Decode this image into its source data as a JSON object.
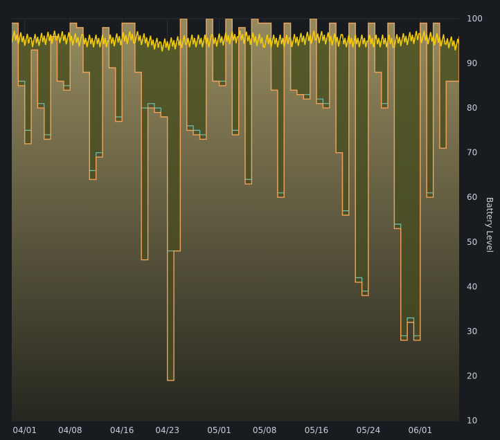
{
  "chart_data": {
    "type": "area",
    "title": "",
    "xlabel": "",
    "ylabel": "Battery Level",
    "y_axis_position": "right",
    "ylim": [
      10,
      100
    ],
    "xlim": [
      "2025-03-30",
      "2025-06-07"
    ],
    "y_ticks": [
      10,
      20,
      30,
      40,
      50,
      60,
      70,
      80,
      90,
      100
    ],
    "x_ticks": [
      {
        "label": "04/01",
        "date": "2025-04-01"
      },
      {
        "label": "04/08",
        "date": "2025-04-08"
      },
      {
        "label": "04/16",
        "date": "2025-04-16"
      },
      {
        "label": "04/23",
        "date": "2025-04-23"
      },
      {
        "label": "05/01",
        "date": "2025-05-01"
      },
      {
        "label": "05/08",
        "date": "2025-05-08"
      },
      {
        "label": "05/16",
        "date": "2025-05-16"
      },
      {
        "label": "05/24",
        "date": "2025-05-24"
      },
      {
        "label": "06/01",
        "date": "2025-06-01"
      }
    ],
    "grid": true,
    "legend": "none",
    "colors": {
      "background": "#181b1f",
      "grid": "#2c3035",
      "primary_line": "#f2a057",
      "secondary_line": "#6fc4b1",
      "band_line": "#f2cc0c",
      "area_top": "#9b8f62",
      "area_bottom": "#24251f"
    },
    "series": [
      {
        "x": [
          "2025-03-30",
          "2025-03-31",
          "2025-04-01",
          "2025-04-02",
          "2025-04-03",
          "2025-04-04",
          "2025-04-05",
          "2025-04-06",
          "2025-04-07",
          "2025-04-08",
          "2025-04-09",
          "2025-04-10",
          "2025-04-11",
          "2025-04-12",
          "2025-04-13",
          "2025-04-14",
          "2025-04-15",
          "2025-04-16",
          "2025-04-17",
          "2025-04-18",
          "2025-04-19",
          "2025-04-20",
          "2025-04-21",
          "2025-04-22",
          "2025-04-23",
          "2025-04-24",
          "2025-04-25",
          "2025-04-26",
          "2025-04-27",
          "2025-04-28",
          "2025-04-29",
          "2025-04-30",
          "2025-05-01",
          "2025-05-02",
          "2025-05-03",
          "2025-05-04",
          "2025-05-05",
          "2025-05-06",
          "2025-05-07",
          "2025-05-08",
          "2025-05-09",
          "2025-05-10",
          "2025-05-11",
          "2025-05-12",
          "2025-05-13",
          "2025-05-14",
          "2025-05-15",
          "2025-05-16",
          "2025-05-17",
          "2025-05-18",
          "2025-05-19",
          "2025-05-20",
          "2025-05-21",
          "2025-05-22",
          "2025-05-23",
          "2025-05-24",
          "2025-05-25",
          "2025-05-26",
          "2025-05-27",
          "2025-05-28",
          "2025-05-29",
          "2025-05-30",
          "2025-05-31",
          "2025-06-01",
          "2025-06-02",
          "2025-06-03",
          "2025-06-04",
          "2025-06-05",
          "2025-06-06",
          "2025-06-07"
        ],
        "values": [
          99,
          85,
          72,
          93,
          80,
          73,
          96,
          86,
          84,
          99,
          98,
          88,
          64,
          69,
          98,
          89,
          77,
          99,
          99,
          88,
          46,
          80,
          79,
          78,
          19,
          48,
          100,
          75,
          74,
          73,
          100,
          86,
          85,
          100,
          74,
          98,
          63,
          100,
          99,
          99,
          84,
          60,
          99,
          84,
          83,
          82,
          100,
          81,
          80,
          99,
          70,
          56,
          99,
          41,
          38,
          99,
          88,
          80,
          99,
          53,
          28,
          32,
          28,
          99,
          60,
          99,
          71,
          86,
          86,
          96
        ]
      },
      {
        "x": [
          "2025-03-30",
          "2025-03-31",
          "2025-04-01",
          "2025-04-02",
          "2025-04-03",
          "2025-04-04",
          "2025-04-05",
          "2025-04-06",
          "2025-04-07",
          "2025-04-08",
          "2025-04-09",
          "2025-04-10",
          "2025-04-11",
          "2025-04-12",
          "2025-04-13",
          "2025-04-14",
          "2025-04-15",
          "2025-04-16",
          "2025-04-17",
          "2025-04-18",
          "2025-04-19",
          "2025-04-20",
          "2025-04-21",
          "2025-04-22",
          "2025-04-23",
          "2025-04-24",
          "2025-04-25",
          "2025-04-26",
          "2025-04-27",
          "2025-04-28",
          "2025-04-29",
          "2025-04-30",
          "2025-05-01",
          "2025-05-02",
          "2025-05-03",
          "2025-05-04",
          "2025-05-05",
          "2025-05-06",
          "2025-05-07",
          "2025-05-08",
          "2025-05-09",
          "2025-05-10",
          "2025-05-11",
          "2025-05-12",
          "2025-05-13",
          "2025-05-14",
          "2025-05-15",
          "2025-05-16",
          "2025-05-17",
          "2025-05-18",
          "2025-05-19",
          "2025-05-20",
          "2025-05-21",
          "2025-05-22",
          "2025-05-23",
          "2025-05-24",
          "2025-05-25",
          "2025-05-26",
          "2025-05-27",
          "2025-05-28",
          "2025-05-29",
          "2025-05-30",
          "2025-05-31",
          "2025-06-01",
          "2025-06-02",
          "2025-06-03",
          "2025-06-04",
          "2025-06-05",
          "2025-06-06",
          "2025-06-07"
        ],
        "values": [
          99,
          86,
          75,
          93,
          81,
          74,
          96,
          86,
          85,
          99,
          98,
          88,
          66,
          70,
          98,
          89,
          78,
          99,
          99,
          88,
          80,
          81,
          80,
          78,
          48,
          48,
          100,
          76,
          75,
          74,
          100,
          86,
          86,
          100,
          75,
          98,
          64,
          100,
          99,
          99,
          84,
          61,
          99,
          84,
          83,
          83,
          100,
          82,
          81,
          99,
          70,
          57,
          99,
          42,
          39,
          99,
          88,
          81,
          99,
          54,
          29,
          33,
          29,
          99,
          61,
          99,
          71,
          86,
          86,
          96
        ]
      },
      {
        "x": [
          "2025-03-30",
          "2025-04-02",
          "2025-04-06",
          "2025-04-10",
          "2025-04-14",
          "2025-04-18",
          "2025-04-22",
          "2025-04-26",
          "2025-04-30",
          "2025-05-04",
          "2025-05-08",
          "2025-05-12",
          "2025-05-16",
          "2025-05-20",
          "2025-05-24",
          "2025-05-28",
          "2025-06-01",
          "2025-06-05",
          "2025-06-07"
        ],
        "values": [
          96,
          95,
          96,
          95,
          95,
          96,
          94,
          95,
          95,
          96,
          95,
          95,
          96,
          95,
          95,
          95,
          96,
          95,
          94
        ]
      }
    ]
  }
}
